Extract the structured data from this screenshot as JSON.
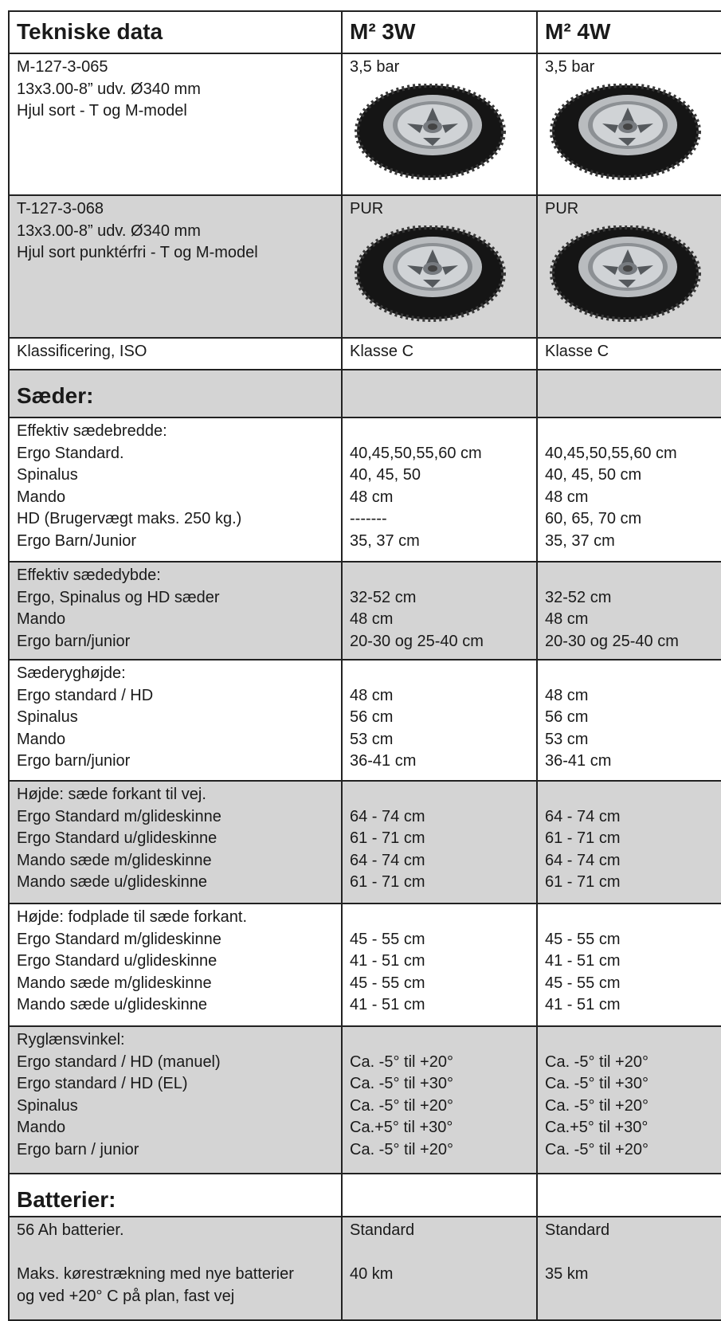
{
  "header": [
    "Tekniske data",
    "M² 3W",
    "M² 4W"
  ],
  "rows": [
    {
      "label": [
        "M-127-3-065",
        "13x3.00-8” udv. Ø340 mm",
        "Hjul sort - T og M-model"
      ],
      "values": [
        "3,5 bar",
        "3,5 bar"
      ]
    },
    {
      "label": [
        "T-127-3-068",
        "13x3.00-8” udv. Ø340 mm",
        "Hjul sort punktérfri - T og M-model"
      ],
      "values": [
        "PUR",
        "PUR"
      ]
    },
    {
      "label": "Klassificering, ISO",
      "values": [
        "Klasse C",
        "Klasse C"
      ]
    },
    {
      "section": "Sæder:"
    },
    {
      "heading": "Effektiv sædebredde:",
      "items": [
        {
          "label": "Ergo Standard.",
          "values": [
            "40,45,50,55,60 cm",
            "40,45,50,55,60 cm"
          ]
        },
        {
          "label": "Spinalus",
          "values": [
            "40, 45, 50",
            "40, 45, 50 cm"
          ]
        },
        {
          "label": "Mando",
          "values": [
            "48 cm",
            "48 cm"
          ]
        },
        {
          "label": "HD (Brugervægt maks. 250 kg.)",
          "values": [
            "-------",
            "60, 65, 70 cm"
          ]
        },
        {
          "label": "Ergo Barn/Junior",
          "values": [
            "35, 37 cm",
            "35, 37 cm"
          ]
        }
      ]
    },
    {
      "heading": "Effektiv sædedybde:",
      "items": [
        {
          "label": "Ergo, Spinalus og HD sæder",
          "values": [
            "32-52 cm",
            "32-52 cm"
          ]
        },
        {
          "label": "Mando",
          "values": [
            "48 cm",
            "48 cm"
          ]
        },
        {
          "label": "Ergo barn/junior",
          "values": [
            "20-30 og 25-40 cm",
            "20-30 og 25-40 cm"
          ]
        }
      ]
    },
    {
      "heading": "Sæderyghøjde:",
      "items": [
        {
          "label": "Ergo standard / HD",
          "values": [
            "48 cm",
            "48 cm"
          ]
        },
        {
          "label": "Spinalus",
          "values": [
            "56 cm",
            "56 cm"
          ]
        },
        {
          "label": "Mando",
          "values": [
            "53 cm",
            "53 cm"
          ]
        },
        {
          "label": "Ergo barn/junior",
          "values": [
            "36-41 cm",
            "36-41 cm"
          ]
        }
      ]
    },
    {
      "heading": "Højde: sæde forkant til vej.",
      "items": [
        {
          "label": "Ergo Standard m/glideskinne",
          "values": [
            "64 - 74 cm",
            "64 - 74 cm"
          ]
        },
        {
          "label": "Ergo Standard u/glideskinne",
          "values": [
            "61 - 71 cm",
            "61 - 71 cm"
          ]
        },
        {
          "label": "Mando sæde m/glideskinne",
          "values": [
            "64 - 74 cm",
            "64 - 74 cm"
          ]
        },
        {
          "label": "Mando sæde u/glideskinne",
          "values": [
            "61 - 71 cm",
            "61 - 71 cm"
          ]
        }
      ]
    },
    {
      "heading": "Højde: fodplade til sæde forkant.",
      "items": [
        {
          "label": "Ergo Standard m/glideskinne",
          "values": [
            "45 - 55 cm",
            "45 - 55 cm"
          ]
        },
        {
          "label": "Ergo Standard u/glideskinne",
          "values": [
            "41 - 51 cm",
            "41 - 51 cm"
          ]
        },
        {
          "label": "Mando sæde m/glideskinne",
          "values": [
            "45 - 55 cm",
            "45 - 55 cm"
          ]
        },
        {
          "label": "Mando sæde u/glideskinne",
          "values": [
            "41 - 51 cm",
            "41 - 51 cm"
          ]
        }
      ]
    },
    {
      "heading": "Ryglænsvinkel:",
      "items": [
        {
          "label": "Ergo standard / HD (manuel)",
          "values": [
            "Ca. -5° til +20°",
            "Ca. -5° til +20°"
          ]
        },
        {
          "label": "Ergo standard / HD (EL)",
          "values": [
            "Ca. -5° til +30°",
            "Ca. -5° til +30°"
          ]
        },
        {
          "label": "Spinalus",
          "values": [
            "Ca. -5° til +20°",
            "Ca. -5° til +20°"
          ]
        },
        {
          "label": "Mando",
          "values": [
            "Ca.+5° til +30°",
            "Ca.+5° til +30°"
          ]
        },
        {
          "label": "Ergo barn / junior",
          "values": [
            "Ca. -5° til +20°",
            "Ca. -5° til +20°"
          ]
        }
      ]
    },
    {
      "section": "Batterier:"
    },
    {
      "items": [
        {
          "label": "56 Ah batterier.",
          "values": [
            "Standard",
            "Standard"
          ]
        },
        {
          "label": [
            "Maks. kørestrækning med nye batterier",
            "og ved +20° C på plan, fast vej"
          ],
          "values": [
            "40 km",
            "35 km"
          ]
        }
      ]
    }
  ]
}
